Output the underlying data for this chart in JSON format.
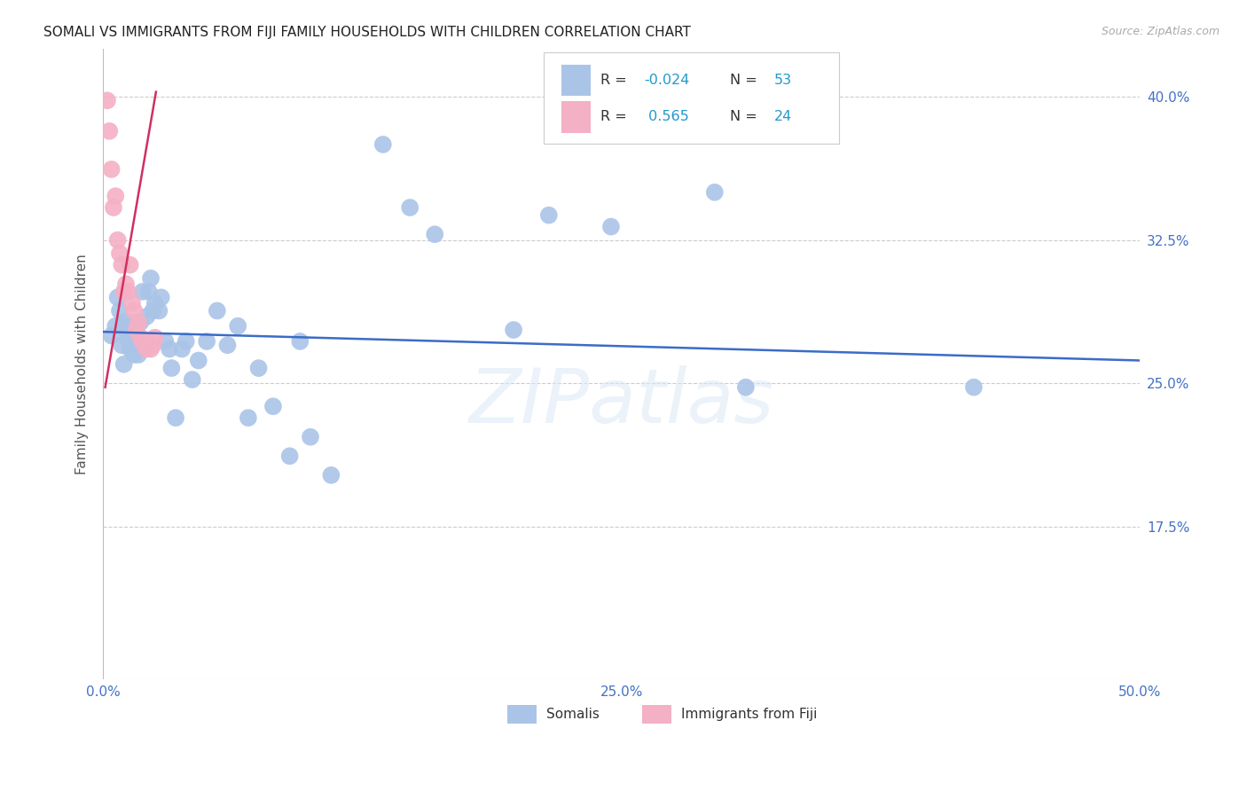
{
  "title": "SOMALI VS IMMIGRANTS FROM FIJI FAMILY HOUSEHOLDS WITH CHILDREN CORRELATION CHART",
  "source": "Source: ZipAtlas.com",
  "ylabel": "Family Households with Children",
  "xlim": [
    0.0,
    0.5
  ],
  "ylim": [
    0.095,
    0.425
  ],
  "ytick_vals": [
    0.175,
    0.25,
    0.325,
    0.4
  ],
  "ytick_labels": [
    "17.5%",
    "25.0%",
    "32.5%",
    "40.0%"
  ],
  "xtick_vals": [
    0.0,
    0.05,
    0.1,
    0.15,
    0.2,
    0.25,
    0.3,
    0.35,
    0.4,
    0.45,
    0.5
  ],
  "xtick_labels": [
    "0.0%",
    "",
    "",
    "",
    "",
    "25.0%",
    "",
    "",
    "",
    "",
    "50.0%"
  ],
  "somali_R": -0.024,
  "somali_N": 53,
  "fiji_R": 0.565,
  "fiji_N": 24,
  "somali_color": "#aac4e8",
  "fiji_color": "#f4b0c4",
  "somali_line_color": "#3b6cc7",
  "fiji_line_color": "#d03060",
  "watermark": "ZIPatlas",
  "somali_x": [
    0.004,
    0.006,
    0.007,
    0.008,
    0.009,
    0.01,
    0.01,
    0.011,
    0.012,
    0.012,
    0.013,
    0.014,
    0.015,
    0.016,
    0.017,
    0.018,
    0.019,
    0.02,
    0.021,
    0.022,
    0.023,
    0.024,
    0.025,
    0.027,
    0.028,
    0.03,
    0.032,
    0.033,
    0.035,
    0.038,
    0.04,
    0.043,
    0.046,
    0.05,
    0.055,
    0.06,
    0.065,
    0.07,
    0.075,
    0.082,
    0.09,
    0.095,
    0.1,
    0.11,
    0.135,
    0.148,
    0.16,
    0.198,
    0.215,
    0.245,
    0.295,
    0.31,
    0.42
  ],
  "somali_y": [
    0.275,
    0.28,
    0.295,
    0.288,
    0.27,
    0.282,
    0.26,
    0.278,
    0.273,
    0.282,
    0.268,
    0.275,
    0.265,
    0.278,
    0.265,
    0.282,
    0.298,
    0.27,
    0.285,
    0.298,
    0.305,
    0.288,
    0.292,
    0.288,
    0.295,
    0.272,
    0.268,
    0.258,
    0.232,
    0.268,
    0.272,
    0.252,
    0.262,
    0.272,
    0.288,
    0.27,
    0.28,
    0.232,
    0.258,
    0.238,
    0.212,
    0.272,
    0.222,
    0.202,
    0.375,
    0.342,
    0.328,
    0.278,
    0.338,
    0.332,
    0.35,
    0.248,
    0.248
  ],
  "fiji_x": [
    0.002,
    0.003,
    0.004,
    0.005,
    0.006,
    0.007,
    0.008,
    0.009,
    0.01,
    0.011,
    0.012,
    0.013,
    0.014,
    0.015,
    0.016,
    0.017,
    0.018,
    0.019,
    0.02,
    0.021,
    0.022,
    0.023,
    0.024,
    0.025
  ],
  "fiji_y": [
    0.398,
    0.382,
    0.362,
    0.342,
    0.348,
    0.325,
    0.318,
    0.312,
    0.298,
    0.302,
    0.298,
    0.312,
    0.292,
    0.288,
    0.278,
    0.282,
    0.274,
    0.272,
    0.27,
    0.268,
    0.272,
    0.268,
    0.27,
    0.274
  ],
  "somali_line_x": [
    0.0,
    0.5
  ],
  "somali_line_y": [
    0.277,
    0.262
  ],
  "fiji_line_x": [
    0.001,
    0.0255
  ],
  "fiji_line_y": [
    0.248,
    0.4025
  ]
}
